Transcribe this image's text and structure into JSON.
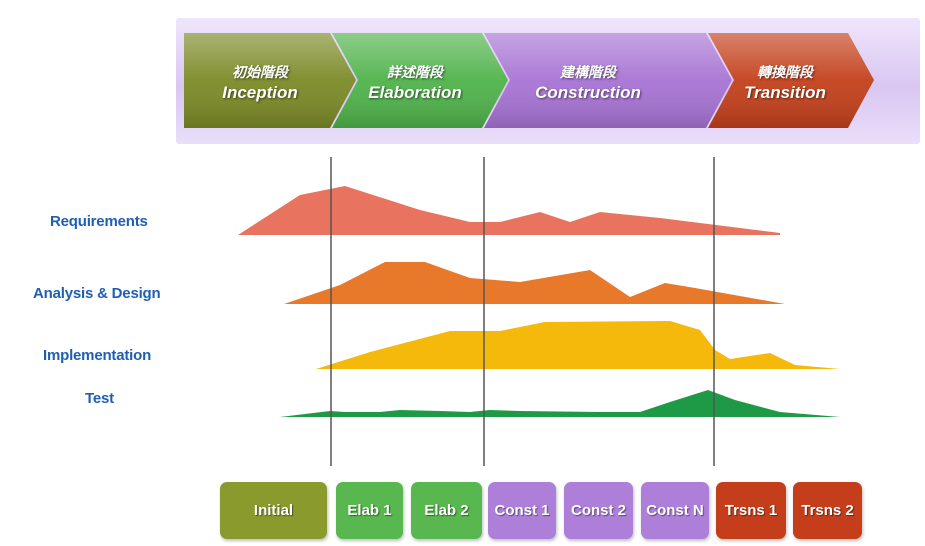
{
  "phases": [
    {
      "zh": "初始階段",
      "en": "Inception",
      "color": "#7b8a26"
    },
    {
      "zh": "詳述階段",
      "en": "Elaboration",
      "color": "#4fb34a"
    },
    {
      "zh": "建構階段",
      "en": "Construction",
      "color": "#a773d4"
    },
    {
      "zh": "轉換階段",
      "en": "Transition",
      "color": "#c3401b"
    }
  ],
  "disciplines": [
    {
      "label": "Requirements",
      "color": "#e8735e"
    },
    {
      "label": "Analysis & Design",
      "color": "#e9792a"
    },
    {
      "label": "Implementation",
      "color": "#f5b90c"
    },
    {
      "label": "Test",
      "color": "#1e9a46"
    }
  ],
  "iterations": [
    {
      "label": "Initial",
      "color": "#8a9a2c"
    },
    {
      "label": "Elab 1",
      "color": "#58b74e"
    },
    {
      "label": "Elab 2",
      "color": "#58b74e"
    },
    {
      "label": "Const 1",
      "color": "#ad7fd9"
    },
    {
      "label": "Const 2",
      "color": "#ad7fd9"
    },
    {
      "label": "Const N",
      "color": "#ad7fd9"
    },
    {
      "label": "Trsns 1",
      "color": "#c43e1c"
    },
    {
      "label": "Trsns 2",
      "color": "#c43e1c"
    }
  ]
}
